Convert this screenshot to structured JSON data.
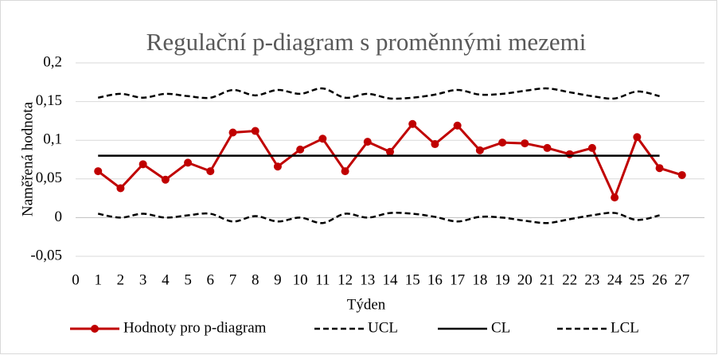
{
  "chart_data": {
    "type": "line",
    "title": "Regulační p-diagram s proměnnými mezemi",
    "x_label": "Týden",
    "y_label": "Naměřená hodnota",
    "x": [
      1,
      2,
      3,
      4,
      5,
      6,
      7,
      8,
      9,
      10,
      11,
      12,
      13,
      14,
      15,
      16,
      17,
      18,
      19,
      20,
      21,
      22,
      23,
      24,
      25,
      26,
      27
    ],
    "series": [
      {
        "name": "Hodnoty pro p-diagram",
        "color": "#c00000",
        "style": "solid",
        "marker": true,
        "values": [
          0.06,
          0.038,
          0.069,
          0.049,
          0.071,
          0.06,
          0.11,
          0.112,
          0.066,
          0.088,
          0.102,
          0.06,
          0.098,
          0.085,
          0.121,
          0.095,
          0.119,
          0.087,
          0.097,
          0.096,
          0.09,
          0.082,
          0.09,
          0.026,
          0.104,
          0.064,
          0.055
        ]
      },
      {
        "name": "UCL",
        "color": "#000000",
        "style": "dashed",
        "marker": false,
        "values": [
          0.155,
          0.16,
          0.155,
          0.16,
          0.157,
          0.155,
          0.165,
          0.158,
          0.165,
          0.16,
          0.167,
          0.155,
          0.16,
          0.154,
          0.155,
          0.159,
          0.165,
          0.159,
          0.16,
          0.164,
          0.167,
          0.162,
          0.157,
          0.154,
          0.163,
          0.157,
          null
        ]
      },
      {
        "name": "CL",
        "color": "#000000",
        "style": "solid",
        "marker": false,
        "values": [
          0.08,
          0.08,
          0.08,
          0.08,
          0.08,
          0.08,
          0.08,
          0.08,
          0.08,
          0.08,
          0.08,
          0.08,
          0.08,
          0.08,
          0.08,
          0.08,
          0.08,
          0.08,
          0.08,
          0.08,
          0.08,
          0.08,
          0.08,
          0.08,
          0.08,
          0.08,
          null
        ]
      },
      {
        "name": "LCL",
        "color": "#000000",
        "style": "dashed",
        "marker": false,
        "values": [
          0.005,
          0.0,
          0.005,
          0.0,
          0.003,
          0.005,
          -0.005,
          0.002,
          -0.005,
          0.0,
          -0.007,
          0.005,
          0.0,
          0.006,
          0.005,
          0.001,
          -0.005,
          0.001,
          0.0,
          -0.004,
          -0.007,
          -0.002,
          0.003,
          0.006,
          -0.003,
          0.003,
          null
        ]
      }
    ],
    "xlim": [
      0,
      28
    ],
    "xticks": [
      0,
      1,
      2,
      3,
      4,
      5,
      6,
      7,
      8,
      9,
      10,
      11,
      12,
      13,
      14,
      15,
      16,
      17,
      18,
      19,
      20,
      21,
      22,
      23,
      24,
      25,
      26,
      27
    ],
    "ylim": [
      -0.05,
      0.2
    ],
    "yticks": [
      {
        "value": -0.05,
        "label": "-0,05"
      },
      0,
      {
        "value": 0.05,
        "label": "0,05"
      },
      {
        "value": 0.1,
        "label": "0,1"
      },
      {
        "value": 0.15,
        "label": "0,15"
      },
      {
        "value": 0.2,
        "label": "0,2"
      }
    ],
    "grid": true,
    "legend": "bottom"
  }
}
